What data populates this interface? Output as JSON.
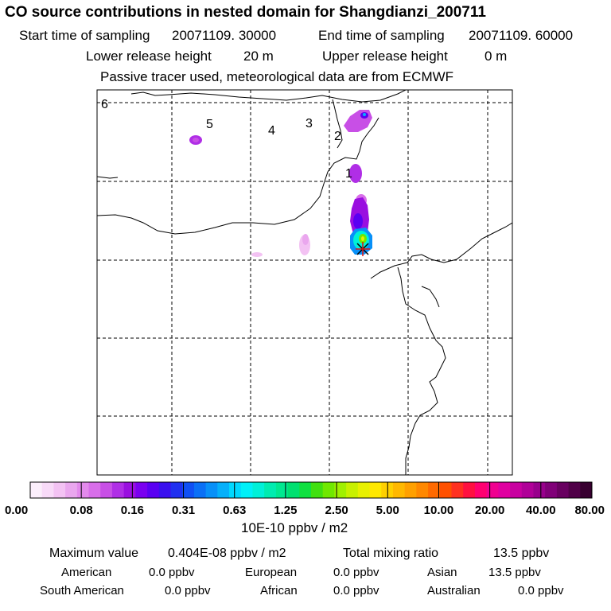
{
  "header": {
    "title": "CO  source contributions in nested domain for Shangdianzi_200711",
    "start_label": "Start time of sampling",
    "start_value": "20071109. 30000",
    "end_label": "End time of sampling",
    "end_value": "20071109. 60000",
    "lower_label": "Lower release height",
    "lower_value": "20 m",
    "upper_label": "Upper release height",
    "upper_value": "0 m",
    "note": "Passive tracer used, meteorological data are from ECMWF"
  },
  "map": {
    "age_labels": [
      "1",
      "2",
      "3",
      "4",
      "5",
      "6"
    ],
    "station_marker": "station-cross-icon",
    "plume_peak_ratio": 1.0
  },
  "colorbar": {
    "ticks": [
      "0.00",
      "0.08",
      "0.16",
      "0.31",
      "0.63",
      "1.25",
      "2.50",
      "5.00",
      "10.00",
      "20.00",
      "40.00",
      "80.00"
    ],
    "unit": "10E-10 ppbv / m2",
    "colors": [
      "#fbeefb",
      "#f8daf8",
      "#f3c2f3",
      "#eaa7ee",
      "#e38aec",
      "#d86ee9",
      "#c84fe6",
      "#b02ee6",
      "#9a0fe0",
      "#7a00f0",
      "#5a00f2",
      "#3a10ee",
      "#2030f0",
      "#1050f4",
      "#0a70f6",
      "#0890f8",
      "#06b0fa",
      "#00d8ff",
      "#00f0f8",
      "#00f0d8",
      "#00ecb0",
      "#00e890",
      "#00e070",
      "#10e040",
      "#40e010",
      "#70e800",
      "#a0f000",
      "#c8f000",
      "#e8f000",
      "#ffe800",
      "#ffd000",
      "#ffb800",
      "#ffa000",
      "#ff8800",
      "#ff6a00",
      "#ff5000",
      "#ff3020",
      "#ff1040",
      "#ff0070",
      "#f00090",
      "#e000a0",
      "#c800a0",
      "#b00098",
      "#98008c",
      "#800078",
      "#680060",
      "#500048",
      "#380030"
    ]
  },
  "footer": {
    "max_label": "Maximum value",
    "max_value": "0.404E-08 ppbv / m2",
    "total_label": "Total mixing ratio",
    "total_value": "13.5 ppbv",
    "regions": [
      {
        "name": "American",
        "value": "0.0 ppbv"
      },
      {
        "name": "European",
        "value": "0.0 ppbv"
      },
      {
        "name": "Asian",
        "value": "13.5 ppbv"
      },
      {
        "name": "South American",
        "value": "0.0 ppbv"
      },
      {
        "name": "African",
        "value": "0.0 ppbv"
      },
      {
        "name": "Australian",
        "value": "0.0 ppbv"
      }
    ]
  }
}
